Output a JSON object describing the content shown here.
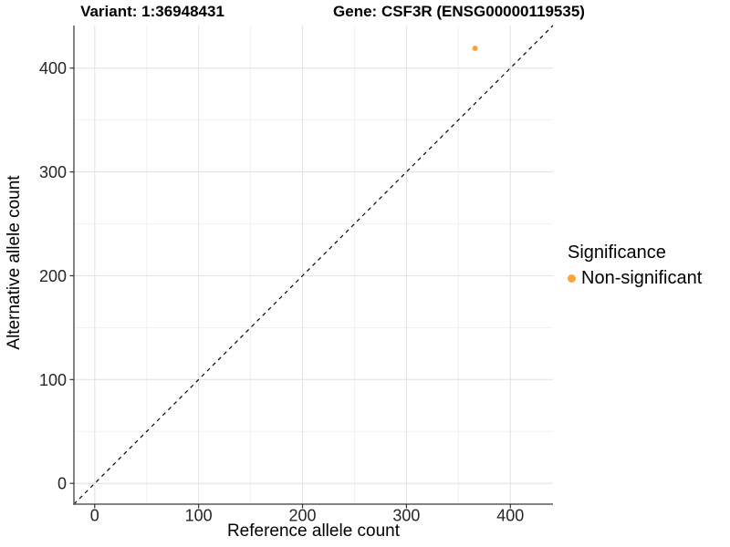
{
  "chart_data": {
    "type": "scatter",
    "title_left": "Variant: 1:36948431",
    "title_right": "Gene: CSF3R (ENSG00000119535)",
    "xlabel": "Reference allele count",
    "ylabel": "Alternative allele count",
    "xlim": [
      -20,
      441
    ],
    "ylim": [
      -20,
      441
    ],
    "x_ticks": [
      0,
      100,
      200,
      300,
      400
    ],
    "y_ticks": [
      0,
      100,
      200,
      300,
      400
    ],
    "x_minor_ticks": [
      50,
      150,
      250,
      350
    ],
    "y_minor_ticks": [
      50,
      150,
      250,
      350
    ],
    "grid": "major+minor",
    "reference_line": {
      "kind": "identity",
      "slope": 1,
      "intercept": 0,
      "style": "dashed",
      "color": "#000000"
    },
    "series": [
      {
        "name": "Non-significant",
        "color": "#F9A43B",
        "points": [
          {
            "x": 366,
            "y": 419
          }
        ]
      }
    ],
    "legend": {
      "title": "Significance",
      "position": "right",
      "entries": [
        {
          "label": "Non-significant",
          "color": "#F9A43B"
        }
      ]
    },
    "style": {
      "background": "#FFFFFF",
      "grid_major_color": "#E4E4E4",
      "grid_minor_color": "#F1F1F1",
      "axis_line_color": "#595959",
      "tick_mark_color": "#333333",
      "tick_label_color": "#262626",
      "text_color": "#000000"
    }
  }
}
